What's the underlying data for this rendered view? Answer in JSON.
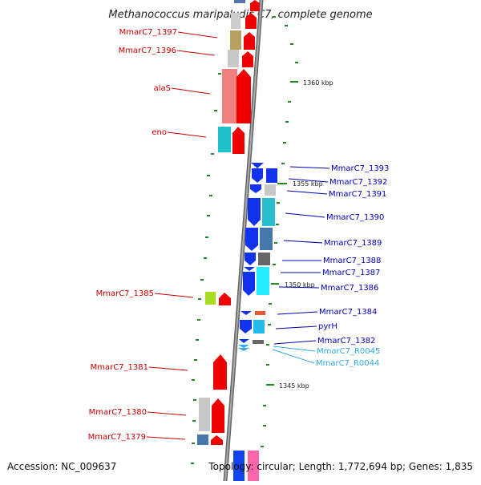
{
  "title": "Methanococcus maripaludis C7, complete genome",
  "footer": {
    "accession": "Accession: NC_009637",
    "topology": "Topology: circular; Length: 1,772,694 bp; Genes: 1,835"
  },
  "scale_labels": [
    "1360 kbp",
    "1355 kbp",
    "1350 kbp",
    "1345 kbp"
  ],
  "colors": {
    "left_label": "#cc0000",
    "right_label": "#0000bb",
    "rna_label": "#33aadd",
    "backbone": "#888888",
    "tick": "#228822"
  },
  "genes_left": [
    {
      "name": "MmarC7_1397",
      "color": "#cc0000"
    },
    {
      "name": "MmarC7_1396",
      "color": "#cc0000"
    },
    {
      "name": "alaS",
      "color": "#cc0000"
    },
    {
      "name": "eno",
      "color": "#cc0000"
    },
    {
      "name": "MmarC7_1385",
      "color": "#cc0000"
    },
    {
      "name": "MmarC7_1381",
      "color": "#cc0000"
    },
    {
      "name": "MmarC7_1380",
      "color": "#cc0000"
    },
    {
      "name": "MmarC7_1379",
      "color": "#cc0000"
    }
  ],
  "genes_right": [
    {
      "name": "MmarC7_1393",
      "color": "#0000bb"
    },
    {
      "name": "MmarC7_1392",
      "color": "#0000bb"
    },
    {
      "name": "MmarC7_1391",
      "color": "#0000bb"
    },
    {
      "name": "MmarC7_1390",
      "color": "#0000bb"
    },
    {
      "name": "MmarC7_1389",
      "color": "#0000bb"
    },
    {
      "name": "MmarC7_1388",
      "color": "#0000bb"
    },
    {
      "name": "MmarC7_1387",
      "color": "#0000bb"
    },
    {
      "name": "MmarC7_1386",
      "color": "#0000bb"
    },
    {
      "name": "MmarC7_1384",
      "color": "#0000bb"
    },
    {
      "name": "pyrH",
      "color": "#0000bb"
    },
    {
      "name": "MmarC7_1382",
      "color": "#0000bb"
    },
    {
      "name": "MmarC7_R0045",
      "color": "#33aadd"
    },
    {
      "name": "MmarC7_R0044",
      "color": "#33aadd"
    }
  ]
}
